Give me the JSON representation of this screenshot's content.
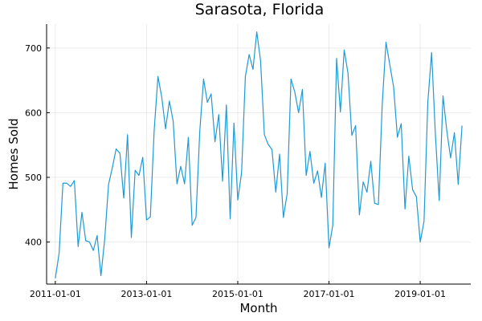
{
  "chart_data": {
    "type": "line",
    "title": "Sarasota, Florida",
    "xlabel": "Month",
    "ylabel": "Homes Sold",
    "grid": true,
    "legend": "none",
    "line_color": "#1f9ad6",
    "xlim": [
      "2011-01-01",
      "2019-12-01"
    ],
    "ylim": [
      335,
      737
    ],
    "x_ticks": [
      "2011-01-01",
      "2013-01-01",
      "2015-01-01",
      "2017-01-01",
      "2019-01-01"
    ],
    "y_ticks": [
      400,
      500,
      600,
      700
    ],
    "series": [
      {
        "x": [
          "2011-01-01",
          "2011-02-01",
          "2011-03-01",
          "2011-04-01",
          "2011-05-01",
          "2011-06-01",
          "2011-07-01",
          "2011-08-01",
          "2011-09-01",
          "2011-10-01",
          "2011-11-01",
          "2011-12-01",
          "2012-01-01",
          "2012-02-01",
          "2012-03-01",
          "2012-04-01",
          "2012-05-01",
          "2012-06-01",
          "2012-07-01",
          "2012-08-01",
          "2012-09-01",
          "2012-10-01",
          "2012-11-01",
          "2012-12-01",
          "2013-01-01",
          "2013-02-01",
          "2013-03-01",
          "2013-04-01",
          "2013-05-01",
          "2013-06-01",
          "2013-07-01",
          "2013-08-01",
          "2013-09-01",
          "2013-10-01",
          "2013-11-01",
          "2013-12-01",
          "2014-01-01",
          "2014-02-01",
          "2014-03-01",
          "2014-04-01",
          "2014-05-01",
          "2014-06-01",
          "2014-07-01",
          "2014-08-01",
          "2014-09-01",
          "2014-10-01",
          "2014-11-01",
          "2014-12-01",
          "2015-01-01",
          "2015-02-01",
          "2015-03-01",
          "2015-04-01",
          "2015-05-01",
          "2015-06-01",
          "2015-07-01",
          "2015-08-01",
          "2015-09-01",
          "2015-10-01",
          "2015-11-01",
          "2015-12-01",
          "2016-01-01",
          "2016-02-01",
          "2016-03-01",
          "2016-04-01",
          "2016-05-01",
          "2016-06-01",
          "2016-07-01",
          "2016-08-01",
          "2016-09-01",
          "2016-10-01",
          "2016-11-01",
          "2016-12-01",
          "2017-01-01",
          "2017-02-01",
          "2017-03-01",
          "2017-04-01",
          "2017-05-01",
          "2017-06-01",
          "2017-07-01",
          "2017-08-01",
          "2017-09-01",
          "2017-10-01",
          "2017-11-01",
          "2017-12-01",
          "2018-01-01",
          "2018-02-01",
          "2018-03-01",
          "2018-04-01",
          "2018-05-01",
          "2018-06-01",
          "2018-07-01",
          "2018-08-01",
          "2018-09-01",
          "2018-10-01",
          "2018-11-01",
          "2018-12-01",
          "2019-01-01",
          "2019-02-01",
          "2019-03-01",
          "2019-04-01",
          "2019-05-01",
          "2019-06-01",
          "2019-07-01",
          "2019-08-01",
          "2019-09-01",
          "2019-10-01",
          "2019-11-01",
          "2019-12-01"
        ],
        "values": [
          344,
          383,
          491,
          491,
          486,
          495,
          393,
          446,
          402,
          400,
          387,
          410,
          348,
          405,
          489,
          515,
          544,
          537,
          468,
          566,
          407,
          511,
          503,
          531,
          434,
          439,
          572,
          656,
          624,
          575,
          618,
          587,
          490,
          517,
          490,
          562,
          426,
          438,
          571,
          652,
          616,
          629,
          555,
          597,
          494,
          612,
          436,
          584,
          465,
          507,
          656,
          690,
          667,
          725,
          680,
          566,
          551,
          543,
          477,
          536,
          438,
          475,
          652,
          632,
          600,
          636,
          503,
          540,
          491,
          510,
          469,
          522,
          391,
          426,
          684,
          601,
          697,
          661,
          565,
          580,
          442,
          493,
          477,
          525,
          460,
          458,
          612,
          709,
          674,
          640,
          562,
          583,
          451,
          533,
          481,
          470,
          400,
          432,
          616,
          693,
          566,
          464,
          626,
          572,
          530,
          569,
          489,
          580
        ]
      }
    ]
  }
}
